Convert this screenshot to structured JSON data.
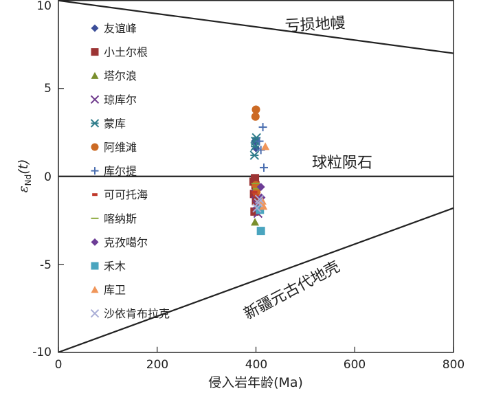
{
  "chart_data": {
    "type": "scatter",
    "title": "",
    "xlabel": "侵入岩年龄(Ma)",
    "ylabel_main": "ε",
    "ylabel_sub": "Nd",
    "ylabel_arg": "(t)",
    "xlim": [
      0,
      800
    ],
    "ylim": [
      -10,
      10
    ],
    "x_ticks": [
      0,
      200,
      400,
      600,
      800
    ],
    "y_ticks": [
      10,
      5,
      0,
      -5,
      -10
    ],
    "x_tick_labels": [
      "0",
      "200",
      "400",
      "600",
      "800"
    ],
    "y_tick_labels": [
      "10",
      "5",
      "0",
      "-5",
      "-10"
    ],
    "grid": false,
    "reference_lines": [
      {
        "name": "亏损地幔",
        "x": [
          0,
          800
        ],
        "y": [
          10,
          7
        ]
      },
      {
        "name": "球粒陨石",
        "x": [
          0,
          800
        ],
        "y": [
          0,
          0
        ]
      },
      {
        "name": "新疆元古代地壳",
        "x": [
          0,
          800
        ],
        "y": [
          -10,
          -1.8
        ]
      }
    ],
    "series": [
      {
        "name": "友谊峰",
        "marker": "diamond",
        "color": "#3d4f9a",
        "points": [
          [
            398,
            2.0
          ],
          [
            400,
            1.6
          ]
        ]
      },
      {
        "name": "小土尔根",
        "marker": "square",
        "color": "#9c3434",
        "points": [
          [
            395,
            -0.3
          ],
          [
            396,
            -1.0
          ],
          [
            397,
            -2.0
          ],
          [
            399,
            -0.5
          ],
          [
            400,
            -1.4
          ],
          [
            398,
            -0.1
          ]
        ]
      },
      {
        "name": "塔尔浪",
        "marker": "triangle",
        "color": "#7a8f2e",
        "points": [
          [
            398,
            -2.6
          ],
          [
            400,
            -0.6
          ]
        ]
      },
      {
        "name": "琼库尔",
        "marker": "x",
        "color": "#6e3a8c",
        "points": [
          [
            400,
            -1.0
          ],
          [
            402,
            -1.6
          ],
          [
            404,
            -2.1
          ]
        ]
      },
      {
        "name": "蒙库",
        "marker": "asterisk",
        "color": "#2e7c8a",
        "points": [
          [
            397,
            1.2
          ],
          [
            399,
            2.0
          ],
          [
            401,
            2.2
          ],
          [
            398,
            1.7
          ]
        ]
      },
      {
        "name": "阿维滩",
        "marker": "circle",
        "color": "#cc6a24",
        "points": [
          [
            400,
            3.8
          ],
          [
            399,
            3.4
          ],
          [
            400,
            -0.5
          ],
          [
            401,
            -0.9
          ]
        ]
      },
      {
        "name": "库尔提",
        "marker": "plus",
        "color": "#4a6eb0",
        "points": [
          [
            414,
            2.8
          ],
          [
            416,
            0.5
          ],
          [
            410,
            1.5
          ],
          [
            407,
            2.0
          ]
        ]
      },
      {
        "name": "可可托海",
        "marker": "dash",
        "color": "#c0392b",
        "points": [
          [
            397,
            -0.9
          ],
          [
            400,
            -1.1
          ]
        ]
      },
      {
        "name": "喀纳斯",
        "marker": "hline",
        "color": "#8aa83a",
        "points": [
          [
            399,
            -0.4
          ],
          [
            402,
            -0.7
          ]
        ]
      },
      {
        "name": "克孜噶尔",
        "marker": "diamond",
        "color": "#6d3d96",
        "points": [
          [
            410,
            -0.6
          ],
          [
            411,
            -1.2
          ]
        ]
      },
      {
        "name": "禾木",
        "marker": "square",
        "color": "#4aa5bf",
        "points": [
          [
            410,
            -3.1
          ],
          [
            408,
            -1.9
          ]
        ]
      },
      {
        "name": "库卫",
        "marker": "triangle",
        "color": "#f0965a",
        "points": [
          [
            419,
            1.7
          ],
          [
            415,
            -1.7
          ],
          [
            413,
            -1.4
          ]
        ]
      },
      {
        "name": "沙依肯布拉克",
        "marker": "x",
        "color": "#a9aed6",
        "points": [
          [
            405,
            -1.5
          ],
          [
            402,
            -1.8
          ],
          [
            407,
            -1.3
          ]
        ]
      }
    ]
  }
}
